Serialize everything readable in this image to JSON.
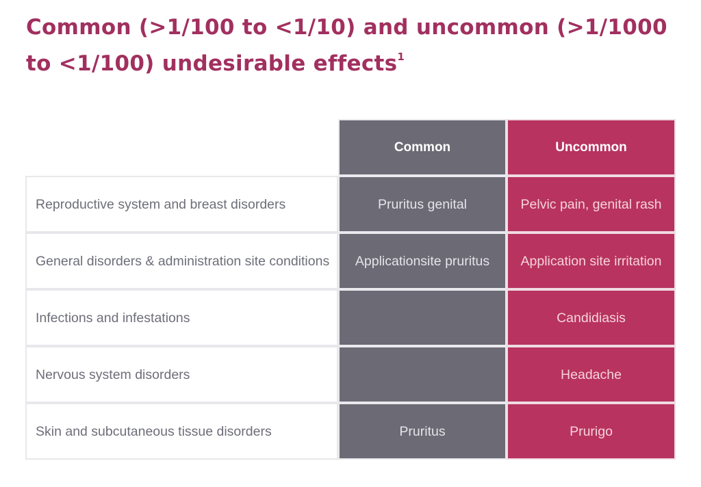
{
  "title": {
    "text": "Common (>1/100 to <1/10) and uncommon (>1/1000 to <1/100) undesirable effects",
    "superscript": "1"
  },
  "table": {
    "headers": {
      "common": "Common",
      "uncommon": "Uncommon"
    },
    "rows": [
      {
        "label": "Reproductive system and breast disorders",
        "common": "Pruritus genital",
        "uncommon": "Pelvic pain, genital rash"
      },
      {
        "label": "General disorders & administration site conditions",
        "common": "Applicationsite pruritus",
        "uncommon": "Application site irritation"
      },
      {
        "label": "Infections and infestations",
        "common": "",
        "uncommon": "Candidiasis"
      },
      {
        "label": "Nervous system disorders",
        "common": "",
        "uncommon": "Headache"
      },
      {
        "label": "Skin and subcutaneous tissue disorders",
        "common": "Pruritus",
        "uncommon": "Prurigo"
      }
    ]
  },
  "colors": {
    "title": "#a1305f",
    "common_bg": "#6b6a75",
    "uncommon_bg": "#b8335f",
    "label_text": "#6d6e79"
  }
}
